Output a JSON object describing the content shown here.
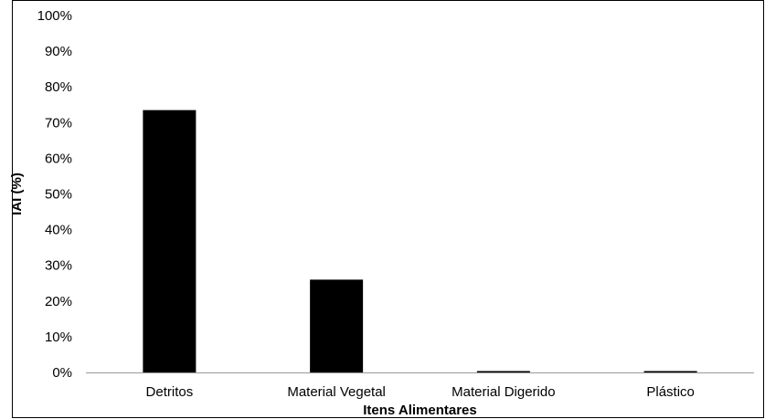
{
  "chart_data": {
    "type": "bar",
    "title": "",
    "xlabel": "Itens Alimentares",
    "ylabel": "IAI (%)",
    "categories": [
      "Detritos",
      "Material Vegetal",
      "Material Digerido",
      "Plástico"
    ],
    "values": [
      73.5,
      26,
      0.3,
      0.3
    ],
    "ylim": [
      0,
      100
    ],
    "y_ticks": [
      0,
      10,
      20,
      30,
      40,
      50,
      60,
      70,
      80,
      90,
      100
    ],
    "y_tick_suffix": "%",
    "grid": false,
    "legend": false,
    "colors": {
      "bar": "#000000",
      "axis": "#000000",
      "frame": "#000000",
      "background": "#ffffff"
    }
  }
}
